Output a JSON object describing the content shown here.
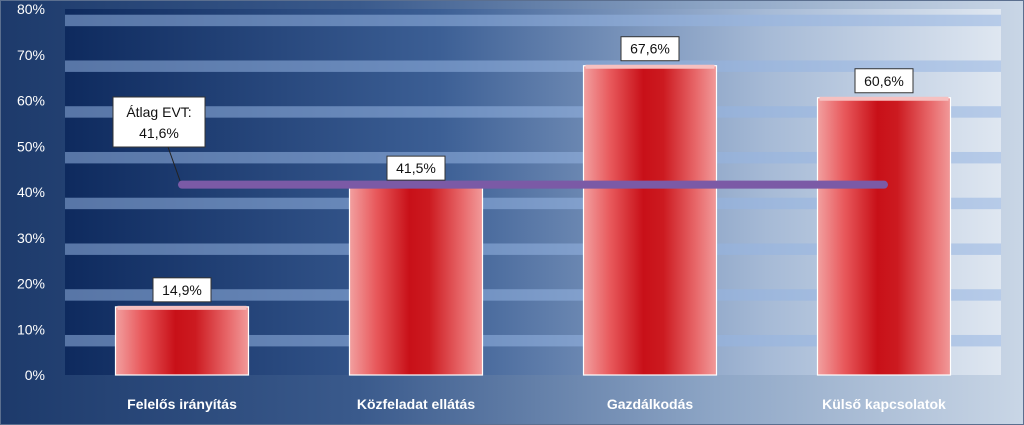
{
  "chart_data": {
    "type": "bar",
    "categories": [
      "Felelős irányítás",
      "Közfeladat ellátás",
      "Gazdálkodás",
      "Külső kapcsolatok"
    ],
    "values": [
      14.9,
      41.5,
      67.6,
      60.6
    ],
    "value_labels": [
      "14,9%",
      "41,5%",
      "67,6%",
      "60,6%"
    ],
    "ylim": [
      0,
      80
    ],
    "y_ticks": [
      0,
      10,
      20,
      30,
      40,
      50,
      60,
      70,
      80
    ],
    "y_tick_labels": [
      "0%",
      "10%",
      "20%",
      "30%",
      "40%",
      "50%",
      "60%",
      "70%",
      "80%"
    ],
    "average": {
      "value": 41.6,
      "label_line1": "Átlag EVT:",
      "label_line2": "41,6%",
      "color": "#7b5aa6"
    },
    "bar_color": "#e0242a",
    "grid": true,
    "legend": false
  }
}
